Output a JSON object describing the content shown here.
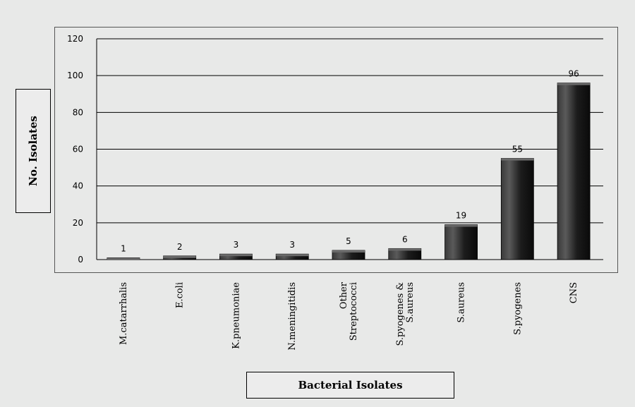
{
  "chart_data": {
    "type": "bar",
    "title": "",
    "xlabel": "Bacterial Isolates",
    "ylabel": "No. Isolates",
    "categories": [
      [
        "M.catarrhalis"
      ],
      [
        "E.coli"
      ],
      [
        "K.pneumoniae"
      ],
      [
        "N.meningitidis"
      ],
      [
        "Other",
        "Streptococci"
      ],
      [
        "S.pyogenes &",
        "S.aureus"
      ],
      [
        "S.aureus"
      ],
      [
        "S.pyogenes"
      ],
      [
        "CNS"
      ]
    ],
    "values": [
      1,
      2,
      3,
      3,
      5,
      6,
      19,
      55,
      96
    ],
    "ylim": [
      0,
      120
    ],
    "yticks": [
      0,
      20,
      40,
      60,
      80,
      100,
      120
    ],
    "grid": true,
    "legend": "none",
    "colors": {
      "bar": "#1c1c1c",
      "bar_highlight": "#5a5a5a",
      "gridline": "#000000",
      "background": "#e8e9e8"
    }
  }
}
